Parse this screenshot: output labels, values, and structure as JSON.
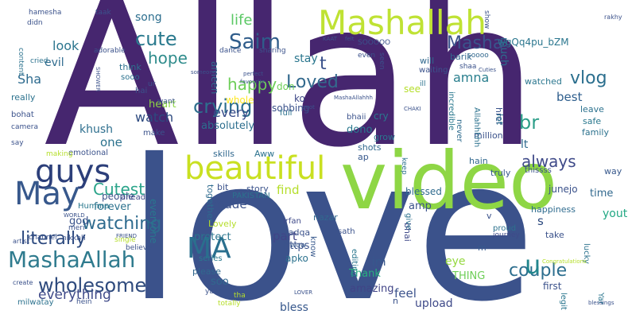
{
  "words": [
    {
      "text": "Allah",
      "color": "#46266f"
    },
    {
      "text": "love",
      "color": "#3b528b"
    },
    {
      "text": "video",
      "color": "#8ed645"
    },
    {
      "text": "Mashallah",
      "color": "#bfe234"
    },
    {
      "text": "beautiful",
      "color": "#c9e021"
    },
    {
      "text": "guys",
      "color": "#2c3f7a"
    },
    {
      "text": "MashaAllah",
      "color": "#2f7b8e"
    },
    {
      "text": "May",
      "color": "#37588c"
    },
    {
      "text": "MA",
      "color": "#2a6f8e"
    },
    {
      "text": "wholesome",
      "color": "#2e4a7d"
    },
    {
      "text": "Saim",
      "color": "#2f5c8a"
    },
    {
      "text": "cute",
      "color": "#2a7a8e"
    },
    {
      "text": "crying",
      "color": "#2d6f8e"
    },
    {
      "text": "Loved",
      "color": "#33698d"
    },
    {
      "text": "Masha",
      "color": "#3a538b"
    },
    {
      "text": "watching",
      "color": "#2e6b8e"
    },
    {
      "text": "literally",
      "color": "#2d4a7f"
    },
    {
      "text": "couple",
      "color": "#2c6e8e"
    },
    {
      "text": "everything",
      "color": "#3f4a89"
    },
    {
      "text": "happy",
      "color": "#6ece58"
    },
    {
      "text": "hope",
      "color": "#2f8c8c"
    },
    {
      "text": "vlog",
      "color": "#2b6f8e"
    },
    {
      "text": "br",
      "color": "#2d9e89"
    },
    {
      "text": "u",
      "color": "#22868d"
    },
    {
      "text": "always",
      "color": "#3f4a89"
    },
    {
      "text": "Cutest",
      "color": "#2aa48a"
    },
    {
      "text": "life",
      "color": "#5ac864"
    },
    {
      "text": "song",
      "color": "#2c6e8e"
    },
    {
      "text": "look",
      "color": "#2b758e"
    },
    {
      "text": "evil",
      "color": "#2f6b8e"
    },
    {
      "text": "Sha",
      "color": "#2c6a8e"
    },
    {
      "text": "one",
      "color": "#2c728e"
    },
    {
      "text": "watch",
      "color": "#2d4a7f"
    },
    {
      "text": "heart",
      "color": "#8ed645"
    },
    {
      "text": "khush",
      "color": "#2e6f8e"
    },
    {
      "text": "stay",
      "color": "#2a768e"
    },
    {
      "text": "every",
      "color": "#354a88"
    },
    {
      "text": "amna",
      "color": "#2a7f8e"
    },
    {
      "text": "best",
      "color": "#2e5e8d"
    },
    {
      "text": "t",
      "color": "#3b528b"
    },
    {
      "text": "lt",
      "color": "#2f6b8e"
    },
    {
      "text": "find",
      "color": "#b5de2b"
    },
    {
      "text": "made",
      "color": "#3b528b"
    },
    {
      "text": "forever",
      "color": "#2c728e"
    },
    {
      "text": "part",
      "color": "#414487"
    },
    {
      "text": "protect",
      "color": "#2a768e"
    },
    {
      "text": "god",
      "color": "#3a538b"
    },
    {
      "text": "s",
      "color": "#2d4a7f"
    },
    {
      "text": "youtube",
      "color": "#22a884"
    },
    {
      "text": "time",
      "color": "#31688e"
    },
    {
      "text": "eye",
      "color": "#95d840"
    },
    {
      "text": "feel",
      "color": "#3b528b"
    },
    {
      "text": "bless",
      "color": "#37588c"
    },
    {
      "text": "upload",
      "color": "#3f4a89"
    },
    {
      "text": "https",
      "color": "#3b528b"
    },
    {
      "text": "amp",
      "color": "#3b528b"
    },
    {
      "text": "im",
      "color": "#37588c"
    },
    {
      "text": "Thank",
      "color": "#29af7f"
    },
    {
      "text": "THING",
      "color": "#6ece58"
    },
    {
      "text": "soo",
      "color": "#31688e"
    },
    {
      "text": "absolutely",
      "color": "#2c6e8e"
    },
    {
      "text": "dono",
      "color": "#2a788e"
    },
    {
      "text": "sobbing",
      "color": "#3b528b"
    },
    {
      "text": "ameen",
      "color": "#2f6b8e"
    },
    {
      "text": "whole",
      "color": "#fde725"
    },
    {
      "text": "don",
      "color": "#6ece58"
    },
    {
      "text": "ko",
      "color": "#3f4a89"
    },
    {
      "text": "cry",
      "color": "#2a788e"
    },
    {
      "text": "see",
      "color": "#b5de2b"
    },
    {
      "text": "ill",
      "color": "#2c728e"
    },
    {
      "text": "will",
      "color": "#31688e"
    },
    {
      "text": "barik",
      "color": "#31688e"
    },
    {
      "text": "wgQq4pu_bZM",
      "color": "#2a768e"
    },
    {
      "text": "much",
      "color": "#2c6e8e"
    },
    {
      "text": "href",
      "color": "#3a538b"
    },
    {
      "text": "leave",
      "color": "#2c728e"
    },
    {
      "text": "watched",
      "color": "#2a768e"
    },
    {
      "text": "safe",
      "color": "#2a788e"
    },
    {
      "text": "family",
      "color": "#2c728e"
    },
    {
      "text": "lot",
      "color": "#2c728e"
    },
    {
      "text": "junejo",
      "color": "#3b528b"
    },
    {
      "text": "way",
      "color": "#37588c"
    },
    {
      "text": "happiness",
      "color": "#2e6b8e"
    },
    {
      "text": "blessed",
      "color": "#2f6b8e"
    },
    {
      "text": "bhai",
      "color": "#3f4a89"
    },
    {
      "text": "nazar",
      "color": "#31688e"
    },
    {
      "text": "story",
      "color": "#3a538b"
    },
    {
      "text": "bit",
      "color": "#3b528b"
    },
    {
      "text": "skills",
      "color": "#31688e"
    },
    {
      "text": "Aww",
      "color": "#2c728e"
    },
    {
      "text": "PAKISTAN",
      "color": "#2c728e"
    },
    {
      "text": "together",
      "color": "#2e6b8e"
    },
    {
      "text": "everyone",
      "color": "#2a768e"
    },
    {
      "text": "people",
      "color": "#3b528b"
    },
    {
      "text": "Humma",
      "color": "#2a788e"
    },
    {
      "text": "ahead",
      "color": "#3f4a89"
    },
    {
      "text": "Lovely",
      "color": "#b5de2b"
    },
    {
      "text": "series",
      "color": "#2a788e"
    },
    {
      "text": "please",
      "color": "#31688e"
    },
    {
      "text": "apko",
      "color": "#2c728e"
    },
    {
      "text": "sadqa",
      "color": "#3b528b"
    },
    {
      "text": "irfan",
      "color": "#3f4a89"
    },
    {
      "text": "know",
      "color": "#37588c"
    },
    {
      "text": "wow",
      "color": "#37588c"
    },
    {
      "text": "editing",
      "color": "#2a768e"
    },
    {
      "text": "sath",
      "color": "#3b528b"
    },
    {
      "text": "amazing",
      "color": "#414487"
    },
    {
      "text": "n",
      "color": "#3b528b"
    },
    {
      "text": "m",
      "color": "#37588c"
    },
    {
      "text": "v",
      "color": "#3b528b"
    },
    {
      "text": "give",
      "color": "#2c728e"
    },
    {
      "text": "keep",
      "color": "#2c728e"
    },
    {
      "text": "hain",
      "color": "#31688e"
    },
    {
      "text": "truly",
      "color": "#37588c"
    },
    {
      "text": "thissss",
      "color": "#3b528b"
    },
    {
      "text": "take",
      "color": "#3b528b"
    },
    {
      "text": "first",
      "color": "#3b528b"
    },
    {
      "text": "lucky",
      "color": "#2c728e"
    },
    {
      "text": "proud",
      "color": "#2c728e"
    },
    {
      "text": "journey",
      "color": "#3f4a89"
    },
    {
      "text": "legit",
      "color": "#2a768e"
    },
    {
      "text": "Yar",
      "color": "#2a768e"
    },
    {
      "text": "million",
      "color": "#3b528b"
    },
    {
      "text": "shots",
      "color": "#31688e"
    },
    {
      "text": "grow",
      "color": "#2a768e"
    },
    {
      "text": "ap",
      "color": "#37588c"
    },
    {
      "text": "bhaii",
      "color": "#3b528b"
    },
    {
      "text": "never",
      "color": "#2e6b8e"
    },
    {
      "text": "incredible",
      "color": "#2a788e"
    },
    {
      "text": "Allahhhhh",
      "color": "#2c728e"
    },
    {
      "text": "waiting",
      "color": "#3b528b"
    },
    {
      "text": "shaa",
      "color": "#3b528b"
    },
    {
      "text": "seen",
      "color": "#3b528b"
    },
    {
      "text": "even",
      "color": "#3b528b"
    },
    {
      "text": "SOOOOO",
      "color": "#3b528b"
    },
    {
      "text": "soooo",
      "color": "#31688e"
    },
    {
      "text": "show",
      "color": "#3b528b"
    },
    {
      "text": "rakhy",
      "color": "#3b528b"
    },
    {
      "text": "full",
      "color": "#2c728e"
    },
    {
      "text": "sharing",
      "color": "#3b528b"
    },
    {
      "text": "dance",
      "color": "#3b528b"
    },
    {
      "text": "adorable",
      "color": "#3b528b"
    },
    {
      "text": "cried",
      "color": "#2c728e"
    },
    {
      "text": "content",
      "color": "#2c728e"
    },
    {
      "text": "didn",
      "color": "#3b528b"
    },
    {
      "text": "taak",
      "color": "#3b528b"
    },
    {
      "text": "hamesha",
      "color": "#3b528b"
    },
    {
      "text": "really",
      "color": "#2c728e"
    },
    {
      "text": "bohat",
      "color": "#3b528b"
    },
    {
      "text": "camera",
      "color": "#3b528b"
    },
    {
      "text": "think",
      "color": "#2c728e"
    },
    {
      "text": "sooo",
      "color": "#2c728e"
    },
    {
      "text": "hai",
      "color": "#3b528b"
    },
    {
      "text": "ur",
      "color": "#3b528b"
    },
    {
      "text": "want",
      "color": "#3b528b"
    },
    {
      "text": "make",
      "color": "#3b528b"
    },
    {
      "text": "emotional",
      "color": "#3b528b"
    },
    {
      "text": "making",
      "color": "#b5de2b"
    },
    {
      "text": "say",
      "color": "#3b528b"
    },
    {
      "text": "meri",
      "color": "#3b528b"
    },
    {
      "text": "channel",
      "color": "#3b528b"
    },
    {
      "text": "nikkah",
      "color": "#3b528b"
    },
    {
      "text": "single",
      "color": "#b5de2b"
    },
    {
      "text": "believe",
      "color": "#3b528b"
    },
    {
      "text": "hein",
      "color": "#3b528b"
    },
    {
      "text": "milwatay",
      "color": "#2c728e"
    },
    {
      "text": "create",
      "color": "#3b528b"
    },
    {
      "text": "totally",
      "color": "#b5de2b"
    },
    {
      "text": "tha",
      "color": "#b5de2b"
    },
    {
      "text": "yaar",
      "color": "#3b528b"
    },
    {
      "text": "artist",
      "color": "#3b528b"
    },
    {
      "text": "WORLD",
      "color": "#3b528b"
    },
    {
      "text": "FRIEND",
      "color": "#3b528b"
    },
    {
      "text": "favourite",
      "color": "#3b528b"
    },
    {
      "text": "perfect",
      "color": "#3b528b"
    },
    {
      "text": "someone",
      "color": "#3b528b"
    },
    {
      "text": "SHOWER",
      "color": "#3b528b"
    },
    {
      "text": "KAAT",
      "color": "#3b528b"
    },
    {
      "text": "felt",
      "color": "#3b528b"
    },
    {
      "text": "Cuties",
      "color": "#3b528b"
    },
    {
      "text": "MashaAllahhh",
      "color": "#3b528b"
    },
    {
      "text": "quot",
      "color": "#3b528b"
    },
    {
      "text": "LOVER",
      "color": "#3b528b"
    },
    {
      "text": "CHAKI",
      "color": "#3b528b"
    },
    {
      "text": "blessings",
      "color": "#3b528b"
    },
    {
      "text": "Congratulations",
      "color": "#b5de2b"
    }
  ]
}
